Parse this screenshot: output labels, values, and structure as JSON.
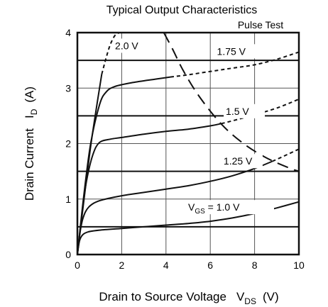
{
  "chart_data": {
    "type": "line",
    "title": "Typical Output Characteristics",
    "annotation": "Pulse Test",
    "xlabel": {
      "main": "Drain to Source Voltage",
      "symbol": "V",
      "sub": "DS",
      "unit": "(V)"
    },
    "ylabel": {
      "main": "Drain Current",
      "symbol": "I",
      "sub": "D",
      "unit": "(A)"
    },
    "xlim": [
      0,
      10
    ],
    "ylim": [
      0,
      4
    ],
    "xticks": [
      0,
      2,
      4,
      6,
      8,
      10
    ],
    "yticks": [
      0,
      1,
      2,
      3,
      4
    ],
    "grid_x": [
      2,
      4,
      6,
      8
    ],
    "grid_y": [
      0.5,
      1,
      1.5,
      2,
      2.5,
      3,
      3.5
    ],
    "series": [
      {
        "name": "1.0 V",
        "label_prefix": "V",
        "label_sub": "GS",
        "label_suffix": " = 1.0 V",
        "solid": [
          [
            0,
            0
          ],
          [
            0.1,
            0.25
          ],
          [
            0.25,
            0.36
          ],
          [
            0.5,
            0.41
          ],
          [
            1,
            0.44
          ],
          [
            2,
            0.47
          ],
          [
            3,
            0.5
          ],
          [
            4,
            0.53
          ],
          [
            5,
            0.56
          ],
          [
            6,
            0.6
          ],
          [
            7,
            0.66
          ],
          [
            8,
            0.74
          ],
          [
            9,
            0.84
          ],
          [
            10,
            0.95
          ]
        ],
        "dashed": []
      },
      {
        "name": "1.25 V",
        "label_prefix": "",
        "label_sub": "",
        "label_suffix": "1.25 V",
        "solid": [
          [
            0,
            0
          ],
          [
            0.1,
            0.35
          ],
          [
            0.25,
            0.65
          ],
          [
            0.5,
            0.85
          ],
          [
            1,
            0.97
          ],
          [
            2,
            1.06
          ],
          [
            3,
            1.12
          ],
          [
            4,
            1.18
          ],
          [
            5,
            1.24
          ],
          [
            6,
            1.32
          ],
          [
            7,
            1.42
          ],
          [
            8,
            1.55
          ],
          [
            8.8,
            1.68
          ]
        ],
        "dashed": [
          [
            8.8,
            1.68
          ],
          [
            9.3,
            1.77
          ],
          [
            10,
            1.9
          ]
        ]
      },
      {
        "name": "1.5 V",
        "label_prefix": "",
        "label_sub": "",
        "label_suffix": "1.5 V",
        "solid": [
          [
            0,
            0
          ],
          [
            0.2,
            0.7
          ],
          [
            0.4,
            1.3
          ],
          [
            0.7,
            1.8
          ],
          [
            1,
            2.02
          ],
          [
            1.5,
            2.08
          ],
          [
            2,
            2.11
          ],
          [
            3,
            2.17
          ],
          [
            4,
            2.22
          ],
          [
            5,
            2.26
          ],
          [
            6,
            2.32
          ],
          [
            6.5,
            2.36
          ]
        ],
        "dashed": [
          [
            6.5,
            2.36
          ],
          [
            7,
            2.41
          ],
          [
            8,
            2.52
          ],
          [
            9,
            2.64
          ],
          [
            10,
            2.8
          ]
        ]
      },
      {
        "name": "1.75 V",
        "label_prefix": "",
        "label_sub": "",
        "label_suffix": "1.75 V",
        "solid": [
          [
            0,
            0
          ],
          [
            0.3,
            1.1
          ],
          [
            0.6,
            2.0
          ],
          [
            1,
            2.7
          ],
          [
            1.3,
            2.93
          ],
          [
            1.7,
            3.03
          ],
          [
            2.5,
            3.1
          ],
          [
            3.5,
            3.16
          ],
          [
            4.2,
            3.2
          ]
        ],
        "dashed": [
          [
            4.2,
            3.2
          ],
          [
            5,
            3.24
          ],
          [
            6,
            3.3
          ],
          [
            7,
            3.36
          ],
          [
            8,
            3.42
          ],
          [
            9,
            3.52
          ],
          [
            10,
            3.65
          ]
        ]
      },
      {
        "name": "2.0 V",
        "label_prefix": "",
        "label_sub": "",
        "label_suffix": "2.0 V",
        "solid": [
          [
            0,
            0
          ],
          [
            0.3,
            1.0
          ],
          [
            0.6,
            1.95
          ],
          [
            0.9,
            2.75
          ],
          [
            1.1,
            3.25
          ]
        ],
        "dashed": [
          [
            1.1,
            3.25
          ],
          [
            1.3,
            3.55
          ],
          [
            1.5,
            3.8
          ],
          [
            1.7,
            3.95
          ],
          [
            1.9,
            4.0
          ]
        ]
      }
    ],
    "power_limit_curve": [
      [
        3.9,
        4.0
      ],
      [
        4.3,
        3.7
      ],
      [
        4.8,
        3.3
      ],
      [
        5.5,
        2.85
      ],
      [
        6.5,
        2.35
      ],
      [
        7.5,
        2.0
      ],
      [
        8.5,
        1.75
      ],
      [
        9.5,
        1.57
      ],
      [
        10,
        1.5
      ]
    ]
  }
}
